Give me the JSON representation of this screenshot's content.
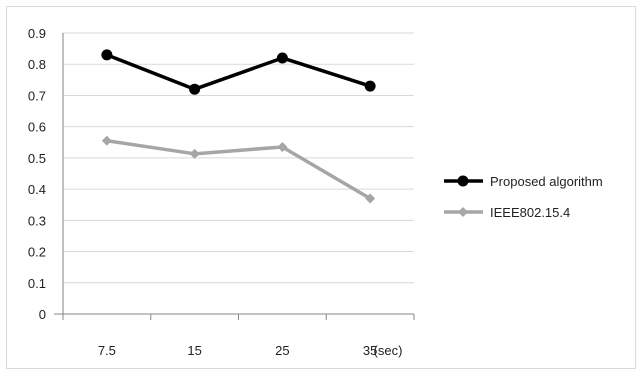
{
  "chart_data": {
    "type": "line",
    "categories": [
      "7.5",
      "15",
      "25",
      "35"
    ],
    "x_unit_label": "(sec)",
    "ylim": [
      0,
      0.9
    ],
    "y_ticks": [
      "0",
      "0.1",
      "0.2",
      "0.3",
      "0.4",
      "0.5",
      "0.6",
      "0.7",
      "0.8",
      "0.9"
    ],
    "grid": true,
    "legend_position": "right",
    "series": [
      {
        "name": "Proposed algorithm",
        "values": [
          0.83,
          0.72,
          0.82,
          0.73
        ],
        "color": "#000000",
        "marker": "circle"
      },
      {
        "name": "IEEE802.15.4",
        "values": [
          0.555,
          0.513,
          0.535,
          0.37
        ],
        "color": "#a6a6a6",
        "marker": "diamond"
      }
    ]
  }
}
